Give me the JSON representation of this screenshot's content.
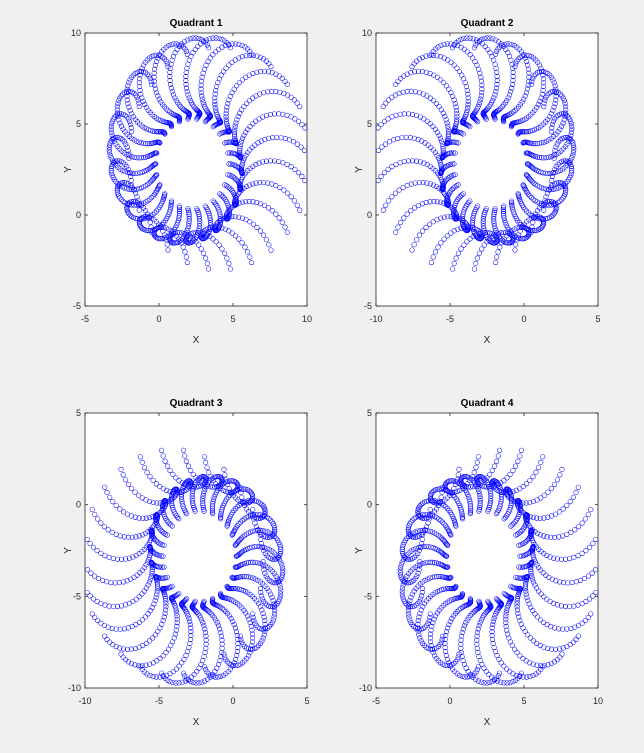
{
  "figure": {
    "background": "#f0f0f0",
    "axes_background": "#ffffff",
    "marker_color": "#0000ff"
  },
  "chart_data": [
    {
      "type": "scatter",
      "title": "Quadrant 1",
      "xlabel": "X",
      "ylabel": "Y",
      "xlim": [
        -5,
        10
      ],
      "ylim": [
        -5,
        10
      ],
      "xticks": [
        -5,
        0,
        5,
        10
      ],
      "yticks": [
        -5,
        0,
        5,
        10
      ],
      "xticklabels": [
        "-5",
        "0",
        "5",
        "10"
      ],
      "yticklabels": [
        "-5",
        "0",
        "5",
        "10"
      ],
      "marker": "circle-open",
      "series": [
        {
          "name": "spiral",
          "color": "#0000ff",
          "sx": 1,
          "sy": 1,
          "description": "ring of small circles: centre (0.55,0.78) radius 1.6 + 2.35t, rotating clockwise around torus path"
        }
      ]
    },
    {
      "type": "scatter",
      "title": "Quadrant 2",
      "xlabel": "X",
      "ylabel": "Y",
      "xlim": [
        -10,
        5
      ],
      "ylim": [
        -5,
        10
      ],
      "xticks": [
        -10,
        -5,
        0,
        5
      ],
      "yticks": [
        -5,
        0,
        5,
        10
      ],
      "xticklabels": [
        "-10",
        "-5",
        "0",
        "5"
      ],
      "yticklabels": [
        "-5",
        "0",
        "5",
        "10"
      ],
      "marker": "circle-open",
      "series": [
        {
          "name": "spiral",
          "color": "#0000ff",
          "sx": -1,
          "sy": 1
        }
      ]
    },
    {
      "type": "scatter",
      "title": "Quadrant 3",
      "xlabel": "X",
      "ylabel": "Y",
      "xlim": [
        -10,
        5
      ],
      "ylim": [
        -10,
        5
      ],
      "xticks": [
        -10,
        -5,
        0,
        5
      ],
      "yticks": [
        -10,
        -5,
        0,
        5
      ],
      "xticklabels": [
        "-10",
        "-5",
        "0",
        "5"
      ],
      "yticklabels": [
        "-10",
        "-5",
        "0",
        "5"
      ],
      "marker": "circle-open",
      "series": [
        {
          "name": "spiral",
          "color": "#0000ff",
          "sx": -1,
          "sy": -1
        }
      ]
    },
    {
      "type": "scatter",
      "title": "Quadrant 4",
      "xlabel": "X",
      "ylabel": "Y",
      "xlim": [
        -5,
        10
      ],
      "ylim": [
        -10,
        5
      ],
      "xticks": [
        -5,
        0,
        5,
        10
      ],
      "yticks": [
        -10,
        -5,
        0,
        5
      ],
      "xticklabels": [
        "-5",
        "0",
        "5",
        "10"
      ],
      "yticklabels": [
        "-10",
        "-5",
        "0",
        "5"
      ],
      "marker": "circle-open",
      "series": [
        {
          "name": "spiral",
          "color": "#0000ff",
          "sx": 1,
          "sy": -1
        }
      ]
    }
  ]
}
